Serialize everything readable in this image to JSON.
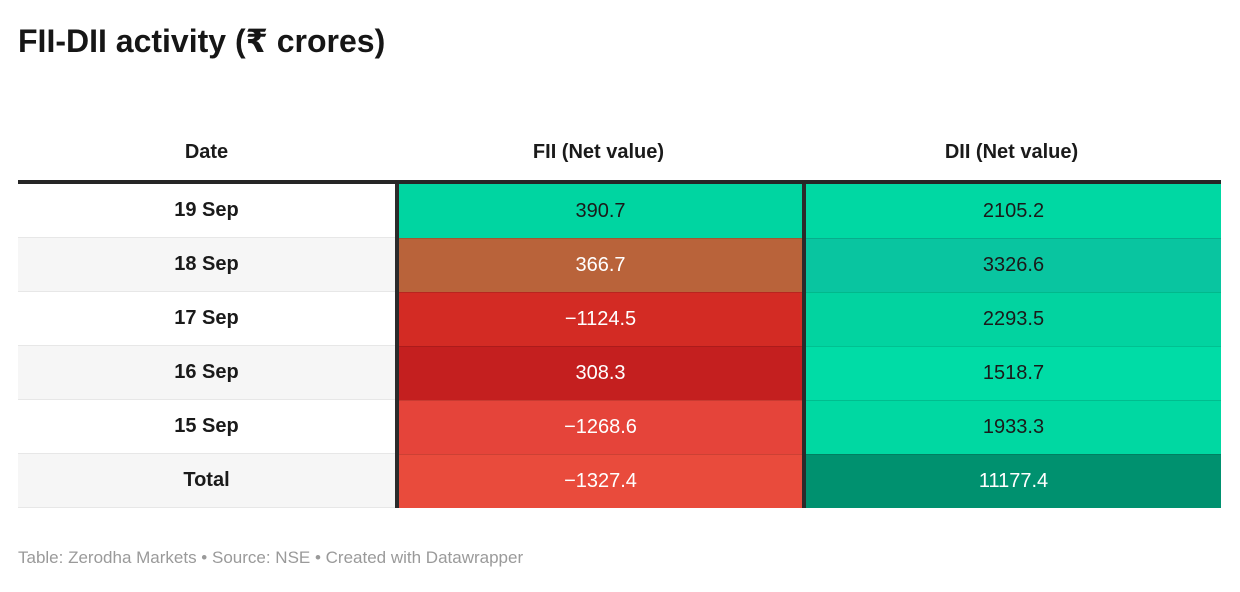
{
  "title": "FII-DII activity (₹ crores)",
  "header": {
    "date": "Date",
    "fii": "FII (Net value)",
    "dii": "DII (Net value)"
  },
  "rows": [
    {
      "date": "19 Sep",
      "fii": "390.7",
      "dii": "2105.2",
      "date_bg": "#ffffff",
      "fii_bg": "#00d5a1",
      "fii_color": "#1a1a1a",
      "dii_bg": "#00d8a3",
      "dii_color": "#1a1a1a"
    },
    {
      "date": "18 Sep",
      "fii": "366.7",
      "dii": "3326.6",
      "date_bg": "#f6f6f6",
      "fii_bg": "#b9633a",
      "fii_color": "#ffffff",
      "dii_bg": "#09c5a0",
      "dii_color": "#1a1a1a"
    },
    {
      "date": "17 Sep",
      "fii": "−1124.5",
      "dii": "2293.5",
      "date_bg": "#ffffff",
      "fii_bg": "#d32b24",
      "fii_color": "#ffffff",
      "dii_bg": "#02d3a0",
      "dii_color": "#1a1a1a"
    },
    {
      "date": "16 Sep",
      "fii": "308.3",
      "dii": "1518.7",
      "date_bg": "#f6f6f6",
      "fii_bg": "#c41f1f",
      "fii_color": "#ffffff",
      "dii_bg": "#00dca6",
      "dii_color": "#1a1a1a"
    },
    {
      "date": "15 Sep",
      "fii": "−1268.6",
      "dii": "1933.3",
      "date_bg": "#ffffff",
      "fii_bg": "#e5443a",
      "fii_color": "#ffffff",
      "dii_bg": "#00d8a2",
      "dii_color": "#1a1a1a"
    },
    {
      "date": "Total",
      "fii": "−1327.4",
      "dii": "11177.4",
      "date_bg": "#f6f6f6",
      "fii_bg": "#e94b3c",
      "fii_color": "#ffffff",
      "dii_bg": "#00916f",
      "dii_color": "#ffffff"
    }
  ],
  "footer": "Table: Zerodha Markets • Source: NSE • Created with Datawrapper",
  "colors": {
    "header_border": "#262626",
    "column_divider": "#2b2b2b",
    "footer_text": "#9a9a9a",
    "positive_green": "#00d5a1",
    "negative_red": "#d32b24",
    "total_green": "#00916f"
  },
  "chart_data": {
    "type": "table",
    "title": "FII-DII activity (₹ crores)",
    "columns": [
      "Date",
      "FII (Net value)",
      "DII (Net value)"
    ],
    "rows": [
      {
        "date": "19 Sep",
        "fii": 390.7,
        "dii": 2105.2
      },
      {
        "date": "18 Sep",
        "fii": 366.7,
        "dii": 3326.6
      },
      {
        "date": "17 Sep",
        "fii": -1124.5,
        "dii": 2293.5
      },
      {
        "date": "16 Sep",
        "fii": 308.3,
        "dii": 1518.7
      },
      {
        "date": "15 Sep",
        "fii": -1268.6,
        "dii": 1933.3
      },
      {
        "date": "Total",
        "fii": -1327.4,
        "dii": 11177.4
      }
    ],
    "heatmap": true,
    "notes": "FII cells colored red-to-green scale (negative red, positive green); DII cells green scale darkening with value; Total row darkest",
    "footer": "Table: Zerodha Markets • Source: NSE • Created with Datawrapper"
  }
}
